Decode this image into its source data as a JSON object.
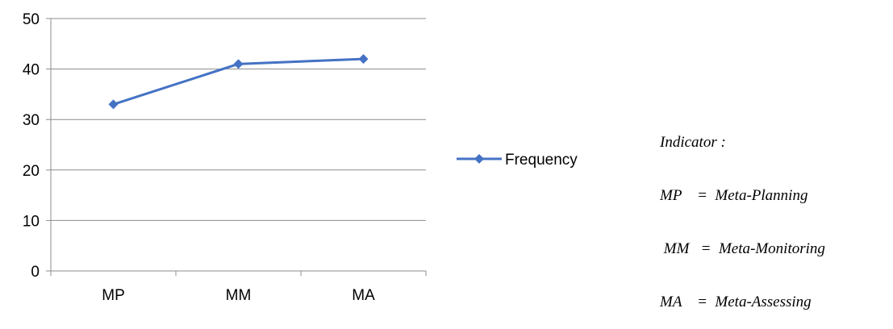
{
  "chart_data": {
    "type": "line",
    "categories": [
      "MP",
      "MM",
      "MA"
    ],
    "series": [
      {
        "name": "Frequency",
        "values": [
          33,
          41,
          42
        ],
        "color": "#4472C4",
        "marker": "diamond"
      }
    ],
    "title": "",
    "xlabel": "",
    "ylabel": "",
    "ylim": [
      0,
      50
    ],
    "yticks": [
      "0",
      "10",
      "20",
      "30",
      "40",
      "50"
    ],
    "grid": "horizontal",
    "legend": "right"
  },
  "indicator": {
    "heading": "Indicator :",
    "lines": [
      "MP    =  Meta-Planning",
      " MM   =  Meta-Monitoring",
      "MA    =  Meta-Assessing"
    ]
  }
}
